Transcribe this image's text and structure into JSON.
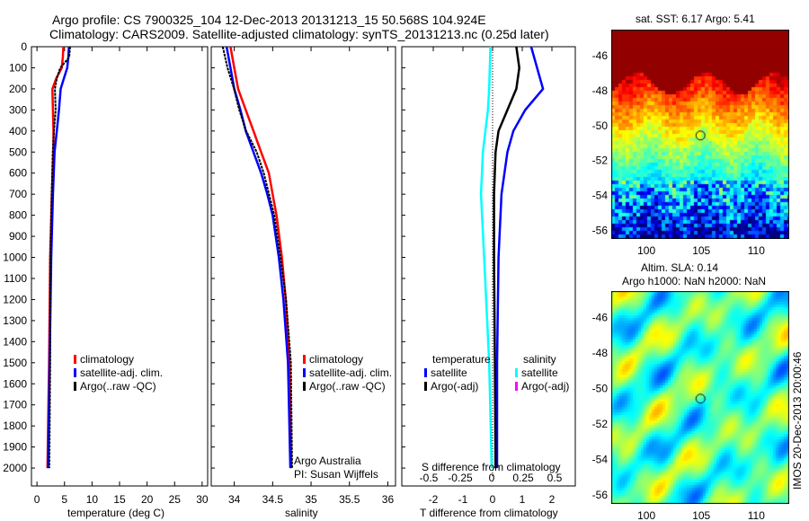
{
  "title": {
    "line1": "Argo profile: CS 7900325_104 12-Dec-2013 20131213_15 50.568S 104.924E",
    "line2": "Climatology: CARS2009. Satellite-adjusted climatology: synTS_20131213.nc (0.25d later)"
  },
  "colors": {
    "climatology": "#ff0000",
    "satellite": "#0000ff",
    "argo": "#000000",
    "sal_satellite": "#00ffff",
    "sal_argo": "#ff00ff"
  },
  "chart_data": [
    {
      "type": "line",
      "name": "temperature",
      "xlabel": "temperature (deg C)",
      "xlim": [
        -1,
        31
      ],
      "ylim": [
        2085,
        0
      ],
      "xticks": [
        "0",
        "5",
        "10",
        "15",
        "20",
        "25",
        "30"
      ],
      "yticks": [
        "0",
        "100",
        "200",
        "300",
        "400",
        "500",
        "600",
        "700",
        "800",
        "900",
        "1000",
        "1100",
        "1200",
        "1300",
        "1400",
        "1500",
        "1600",
        "1700",
        "1800",
        "1900",
        "2000"
      ],
      "depth": [
        0,
        50,
        100,
        150,
        200,
        300,
        400,
        500,
        700,
        1000,
        1500,
        2000
      ],
      "series": [
        {
          "name": "climatology",
          "values": [
            4.8,
            4.7,
            4.5,
            3.5,
            2.8,
            2.9,
            3.0,
            3.0,
            2.7,
            2.4,
            2.2,
            1.9
          ]
        },
        {
          "name": "satellite-adj. clim.",
          "values": [
            5.8,
            5.7,
            5.5,
            4.9,
            4.3,
            4.0,
            3.6,
            3.2,
            2.9,
            2.6,
            2.3,
            2.0
          ]
        },
        {
          "name": "Argo(..raw -QC)",
          "values": [
            6.0,
            5.7,
            4.0,
            3.4,
            3.2,
            3.5,
            3.3,
            3.1,
            2.8,
            2.4,
            2.2,
            2.0
          ]
        }
      ],
      "legend": [
        "climatology",
        "satellite-adj. clim.",
        "Argo(..raw -QC)"
      ]
    },
    {
      "type": "line",
      "name": "salinity",
      "xlabel": "salinity",
      "xlim": [
        33.7,
        36.1
      ],
      "ylim": [
        2085,
        0
      ],
      "xticks": [
        "34",
        "34.5",
        "35",
        "35.5",
        "36"
      ],
      "depth": [
        0,
        100,
        200,
        300,
        400,
        500,
        600,
        700,
        800,
        1000,
        1200,
        1500,
        2000
      ],
      "series": [
        {
          "name": "climatology",
          "values": [
            33.95,
            34.0,
            34.05,
            34.15,
            34.25,
            34.35,
            34.45,
            34.5,
            34.55,
            34.62,
            34.67,
            34.72,
            34.74
          ]
        },
        {
          "name": "satellite-adj. clim.",
          "values": [
            33.9,
            33.95,
            34.0,
            34.08,
            34.15,
            34.25,
            34.35,
            34.43,
            34.5,
            34.58,
            34.64,
            34.7,
            34.73
          ]
        },
        {
          "name": "Argo(..raw -QC)",
          "values": [
            33.85,
            33.9,
            33.98,
            34.05,
            34.15,
            34.3,
            34.4,
            34.47,
            34.53,
            34.6,
            34.66,
            34.72,
            34.74
          ]
        }
      ],
      "legend": [
        "climatology",
        "satellite-adj. clim.",
        "Argo(..raw -QC)"
      ],
      "annotations": [
        "Argo Australia",
        "PI: Susan Wijffels"
      ]
    },
    {
      "type": "line",
      "name": "difference",
      "xlabel": "T difference from climatology",
      "x2label": "S difference from climatology",
      "xlim": [
        -3,
        3
      ],
      "x2lim": [
        -0.7,
        0.85
      ],
      "ylim": [
        2085,
        0
      ],
      "xticks": [
        "-2",
        "-1",
        "0",
        "1",
        "2"
      ],
      "x2ticks": [
        "-0.5",
        "-0.25",
        "0",
        "0.25",
        "0.5"
      ],
      "depth": [
        0,
        100,
        200,
        300,
        400,
        500,
        700,
        1000,
        1500,
        2000
      ],
      "series": [
        {
          "name": "T satellite",
          "values": [
            1.3,
            1.5,
            1.7,
            1.1,
            0.7,
            0.5,
            0.3,
            0.2,
            0.15,
            0.15
          ]
        },
        {
          "name": "T Argo(-adj)",
          "values": [
            0.8,
            0.9,
            0.8,
            0.5,
            0.2,
            0.1,
            0.05,
            0.05,
            0.08,
            0.1
          ]
        },
        {
          "name": "S satellite",
          "values": [
            -0.01,
            -0.015,
            -0.02,
            -0.03,
            -0.05,
            -0.07,
            -0.085,
            -0.06,
            -0.02,
            0.0
          ]
        }
      ],
      "legend": {
        "temperature_title": "temperature",
        "salinity_title": "salinity",
        "items": [
          "satellite",
          "Argo(-adj)",
          "satellite",
          "Argo(-adj)"
        ]
      }
    },
    {
      "type": "heatmap",
      "name": "sst-map",
      "title": "sat. SST: 6.17 Argo: 5.41",
      "xticks": [
        "100",
        "105",
        "110"
      ],
      "yticks": [
        "-46",
        "-48",
        "-50",
        "-52",
        "-54",
        "-56"
      ],
      "xlim": [
        96.8,
        113
      ],
      "ylim": [
        -56.5,
        -44.5
      ],
      "marker": [
        104.924,
        -50.568
      ]
    },
    {
      "type": "heatmap",
      "name": "sla-map",
      "title1": "Altim. SLA: 0.14",
      "title2": "Argo h1000: NaN h2000: NaN",
      "xticks": [
        "100",
        "105",
        "110"
      ],
      "yticks": [
        "-46",
        "-48",
        "-50",
        "-52",
        "-54",
        "-56"
      ],
      "xlim": [
        96.8,
        113
      ],
      "ylim": [
        -56.5,
        -44.5
      ],
      "marker": [
        104.924,
        -50.568
      ]
    }
  ],
  "footer": "IMOS 20-Dec-2013 20:00:46"
}
